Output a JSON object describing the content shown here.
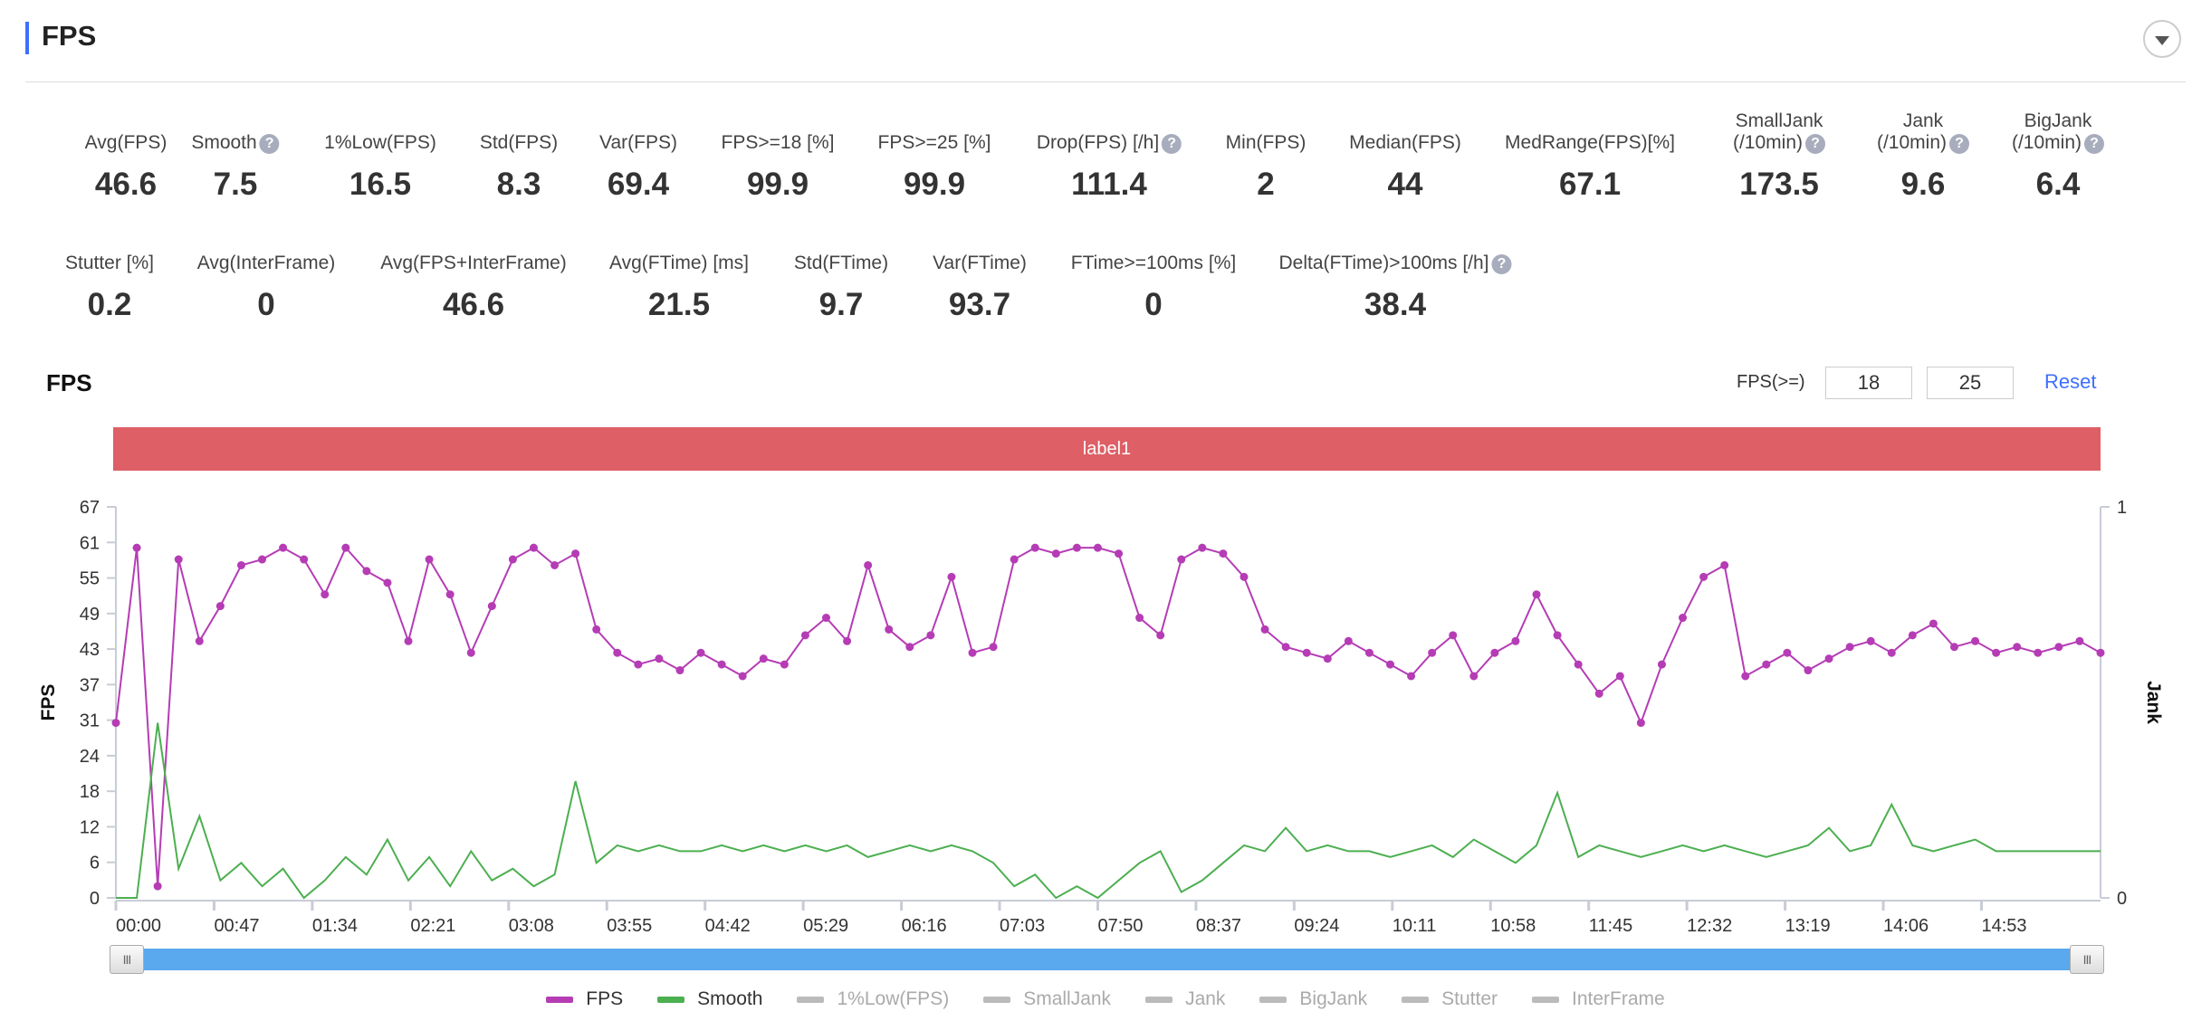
{
  "header": {
    "title": "FPS"
  },
  "stats_row1": [
    {
      "label": "Avg(FPS)",
      "value": "46.6",
      "help": false
    },
    {
      "label": "Smooth",
      "value": "7.5",
      "help": true
    },
    {
      "label": "1%Low(FPS)",
      "value": "16.5",
      "help": false
    },
    {
      "label": "Std(FPS)",
      "value": "8.3",
      "help": false
    },
    {
      "label": "Var(FPS)",
      "value": "69.4",
      "help": false
    },
    {
      "label": "FPS>=18 [%]",
      "value": "99.9",
      "help": false
    },
    {
      "label": "FPS>=25 [%]",
      "value": "99.9",
      "help": false
    },
    {
      "label": "Drop(FPS) [/h]",
      "value": "111.4",
      "help": true
    },
    {
      "label": "Min(FPS)",
      "value": "2",
      "help": false
    },
    {
      "label": "Median(FPS)",
      "value": "44",
      "help": false
    },
    {
      "label": "MedRange(FPS)[%]",
      "value": "67.1",
      "help": false
    },
    {
      "label": "SmallJank",
      "label2": "(/10min)",
      "value": "173.5",
      "help": true
    },
    {
      "label": "Jank",
      "label2": "(/10min)",
      "value": "9.6",
      "help": true
    },
    {
      "label": "BigJank",
      "label2": "(/10min)",
      "value": "6.4",
      "help": true
    }
  ],
  "stats_row2": [
    {
      "label": "Stutter [%]",
      "value": "0.2",
      "help": false
    },
    {
      "label": "Avg(InterFrame)",
      "value": "0",
      "help": false
    },
    {
      "label": "Avg(FPS+InterFrame)",
      "value": "46.6",
      "help": false
    },
    {
      "label": "Avg(FTime) [ms]",
      "value": "21.5",
      "help": false
    },
    {
      "label": "Std(FTime)",
      "value": "9.7",
      "help": false
    },
    {
      "label": "Var(FTime)",
      "value": "93.7",
      "help": false
    },
    {
      "label": "FTime>=100ms [%]",
      "value": "0",
      "help": false
    },
    {
      "label": "Delta(FTime)>100ms [/h]",
      "value": "38.4",
      "help": true
    }
  ],
  "help_glyph": "?",
  "chart": {
    "title": "FPS",
    "threshold_label": "FPS(>=)",
    "threshold1": "18",
    "threshold2": "25",
    "reset_label": "Reset",
    "band_label": "label1",
    "band_color": "#de5f66",
    "slider_handle": "III"
  },
  "chart_data": {
    "type": "line",
    "xlabel": "",
    "ylabel": "FPS",
    "y2label": "Jank",
    "ylim": [
      0,
      67
    ],
    "y2lim": [
      0,
      1
    ],
    "yticks": [
      "0",
      "6",
      "12",
      "18",
      "24",
      "31",
      "37",
      "43",
      "49",
      "55",
      "61",
      "67"
    ],
    "y2ticks": [
      "0",
      "1"
    ],
    "xticks": [
      "00:00",
      "00:47",
      "01:34",
      "02:21",
      "03:08",
      "03:55",
      "04:42",
      "05:29",
      "06:16",
      "07:03",
      "07:50",
      "08:37",
      "09:24",
      "10:11",
      "10:58",
      "11:45",
      "12:32",
      "13:19",
      "14:06",
      "14:53"
    ],
    "xtick_step_s": 47,
    "x_range_s": [
      0,
      950
    ],
    "sample_step_s": 10,
    "series": [
      {
        "name": "FPS",
        "color": "#b53cb5",
        "markers": true,
        "values": [
          30,
          60,
          2,
          58,
          44,
          50,
          57,
          58,
          60,
          58,
          52,
          60,
          56,
          54,
          44,
          58,
          52,
          42,
          50,
          58,
          60,
          57,
          59,
          46,
          42,
          40,
          41,
          39,
          42,
          40,
          38,
          41,
          40,
          45,
          48,
          44,
          57,
          46,
          43,
          45,
          55,
          42,
          43,
          58,
          60,
          59,
          60,
          60,
          59,
          48,
          45,
          58,
          60,
          59,
          55,
          46,
          43,
          42,
          41,
          44,
          42,
          40,
          38,
          42,
          45,
          38,
          42,
          44,
          52,
          45,
          40,
          35,
          38,
          30,
          40,
          48,
          55,
          57,
          38,
          40,
          42,
          39,
          41,
          43,
          44,
          42,
          45,
          47,
          43,
          44,
          42,
          43,
          42,
          43,
          44,
          42
        ]
      },
      {
        "name": "Smooth",
        "color": "#4caf50",
        "markers": false,
        "values": [
          0,
          0,
          30,
          5,
          14,
          3,
          6,
          2,
          5,
          0,
          3,
          7,
          4,
          10,
          3,
          7,
          2,
          8,
          3,
          5,
          2,
          4,
          20,
          6,
          9,
          8,
          9,
          8,
          8,
          9,
          8,
          9,
          8,
          9,
          8,
          9,
          7,
          8,
          9,
          8,
          9,
          8,
          6,
          2,
          4,
          0,
          2,
          0,
          3,
          6,
          8,
          1,
          3,
          6,
          9,
          8,
          12,
          8,
          9,
          8,
          8,
          7,
          8,
          9,
          7,
          10,
          8,
          6,
          9,
          18,
          7,
          9,
          8,
          7,
          8,
          9,
          8,
          9,
          8,
          7,
          8,
          9,
          12,
          8,
          9,
          16,
          9,
          8,
          9,
          10,
          8,
          8,
          8,
          8,
          8,
          8
        ]
      }
    ],
    "legend": [
      {
        "name": "FPS",
        "color": "#b53cb5",
        "enabled": true
      },
      {
        "name": "Smooth",
        "color": "#4caf50",
        "enabled": true
      },
      {
        "name": "1%Low(FPS)",
        "color": "#bbbbbb",
        "enabled": false
      },
      {
        "name": "SmallJank",
        "color": "#bbbbbb",
        "enabled": false
      },
      {
        "name": "Jank",
        "color": "#bbbbbb",
        "enabled": false
      },
      {
        "name": "BigJank",
        "color": "#bbbbbb",
        "enabled": false
      },
      {
        "name": "Stutter",
        "color": "#bbbbbb",
        "enabled": false
      },
      {
        "name": "InterFrame",
        "color": "#bbbbbb",
        "enabled": false
      }
    ]
  }
}
